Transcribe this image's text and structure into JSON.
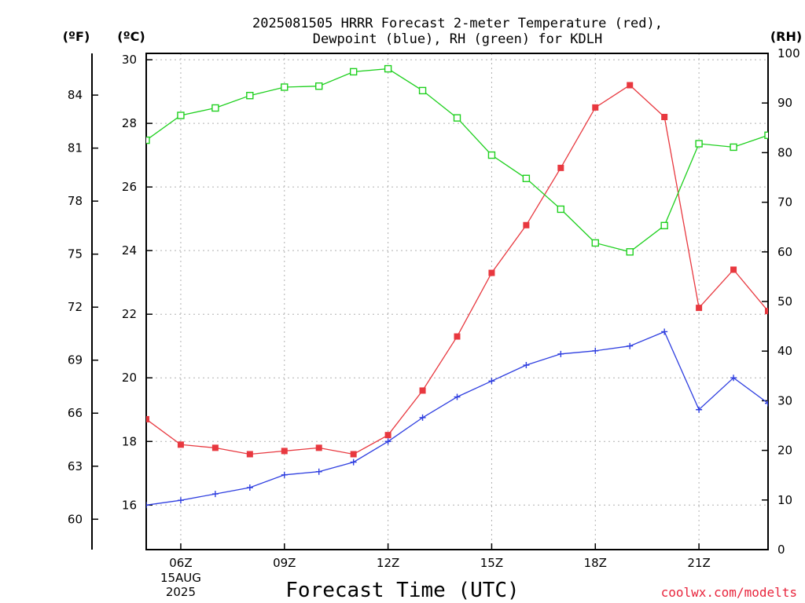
{
  "title_line1": "2025081505 HRRR Forecast 2-meter Temperature (red),",
  "title_line2": "Dewpoint (blue), RH (green) for KDLH",
  "units": {
    "f": "(ºF)",
    "c": "(ºC)",
    "rh": "(RH)"
  },
  "credit": "coolwx.com/modelts",
  "colors": {
    "temperature": "#e8383f",
    "dewpoint": "#2f3fe0",
    "rh": "#1fd01f"
  },
  "chart_data": {
    "type": "line",
    "xlabel": "Forecast Time (UTC)",
    "x_hours": [
      5,
      6,
      7,
      8,
      9,
      10,
      11,
      12,
      13,
      14,
      15,
      16,
      17,
      18,
      19,
      20,
      21,
      22,
      23
    ],
    "x_ticks": [
      {
        "hour": 6,
        "label": "06Z",
        "sub1": "15AUG",
        "sub2": "2025"
      },
      {
        "hour": 9,
        "label": "09Z"
      },
      {
        "hour": 12,
        "label": "12Z"
      },
      {
        "hour": 15,
        "label": "15Z"
      },
      {
        "hour": 18,
        "label": "18Z"
      },
      {
        "hour": 21,
        "label": "21Z"
      }
    ],
    "xlim": [
      5,
      23
    ],
    "y_celsius": {
      "ylim": [
        14.6,
        30.2
      ],
      "ticks": [
        16,
        18,
        20,
        22,
        24,
        26,
        28,
        30
      ]
    },
    "y_fahrenheit_ticks": [
      60,
      63,
      66,
      69,
      72,
      75,
      78,
      81,
      84
    ],
    "y_rh": {
      "ylim": [
        0,
        100
      ],
      "ticks": [
        0,
        10,
        20,
        30,
        40,
        50,
        60,
        70,
        80,
        90,
        100
      ]
    },
    "series": [
      {
        "key": "temperature",
        "marker": "filled-square",
        "values": [
          18.7,
          17.9,
          17.8,
          17.6,
          17.7,
          17.8,
          17.6,
          18.2,
          19.6,
          21.3,
          23.3,
          24.8,
          26.6,
          28.5,
          29.2,
          28.2,
          22.2,
          23.4,
          22.1
        ]
      },
      {
        "key": "dewpoint",
        "marker": "plus",
        "values": [
          16.0,
          16.15,
          16.35,
          16.55,
          16.95,
          17.05,
          17.35,
          18.0,
          18.75,
          19.4,
          19.9,
          20.4,
          20.75,
          20.85,
          21.0,
          21.45,
          19.0,
          20.0,
          19.2
        ]
      },
      {
        "key": "rh",
        "marker": "open-square",
        "axis": "rh",
        "values": [
          82.5,
          87.5,
          89,
          91.5,
          93.2,
          93.4,
          96.3,
          96.9,
          92.5,
          87,
          79.5,
          74.8,
          68.6,
          61.8,
          60,
          65.3,
          81.8,
          81.1,
          83.5
        ]
      }
    ]
  }
}
